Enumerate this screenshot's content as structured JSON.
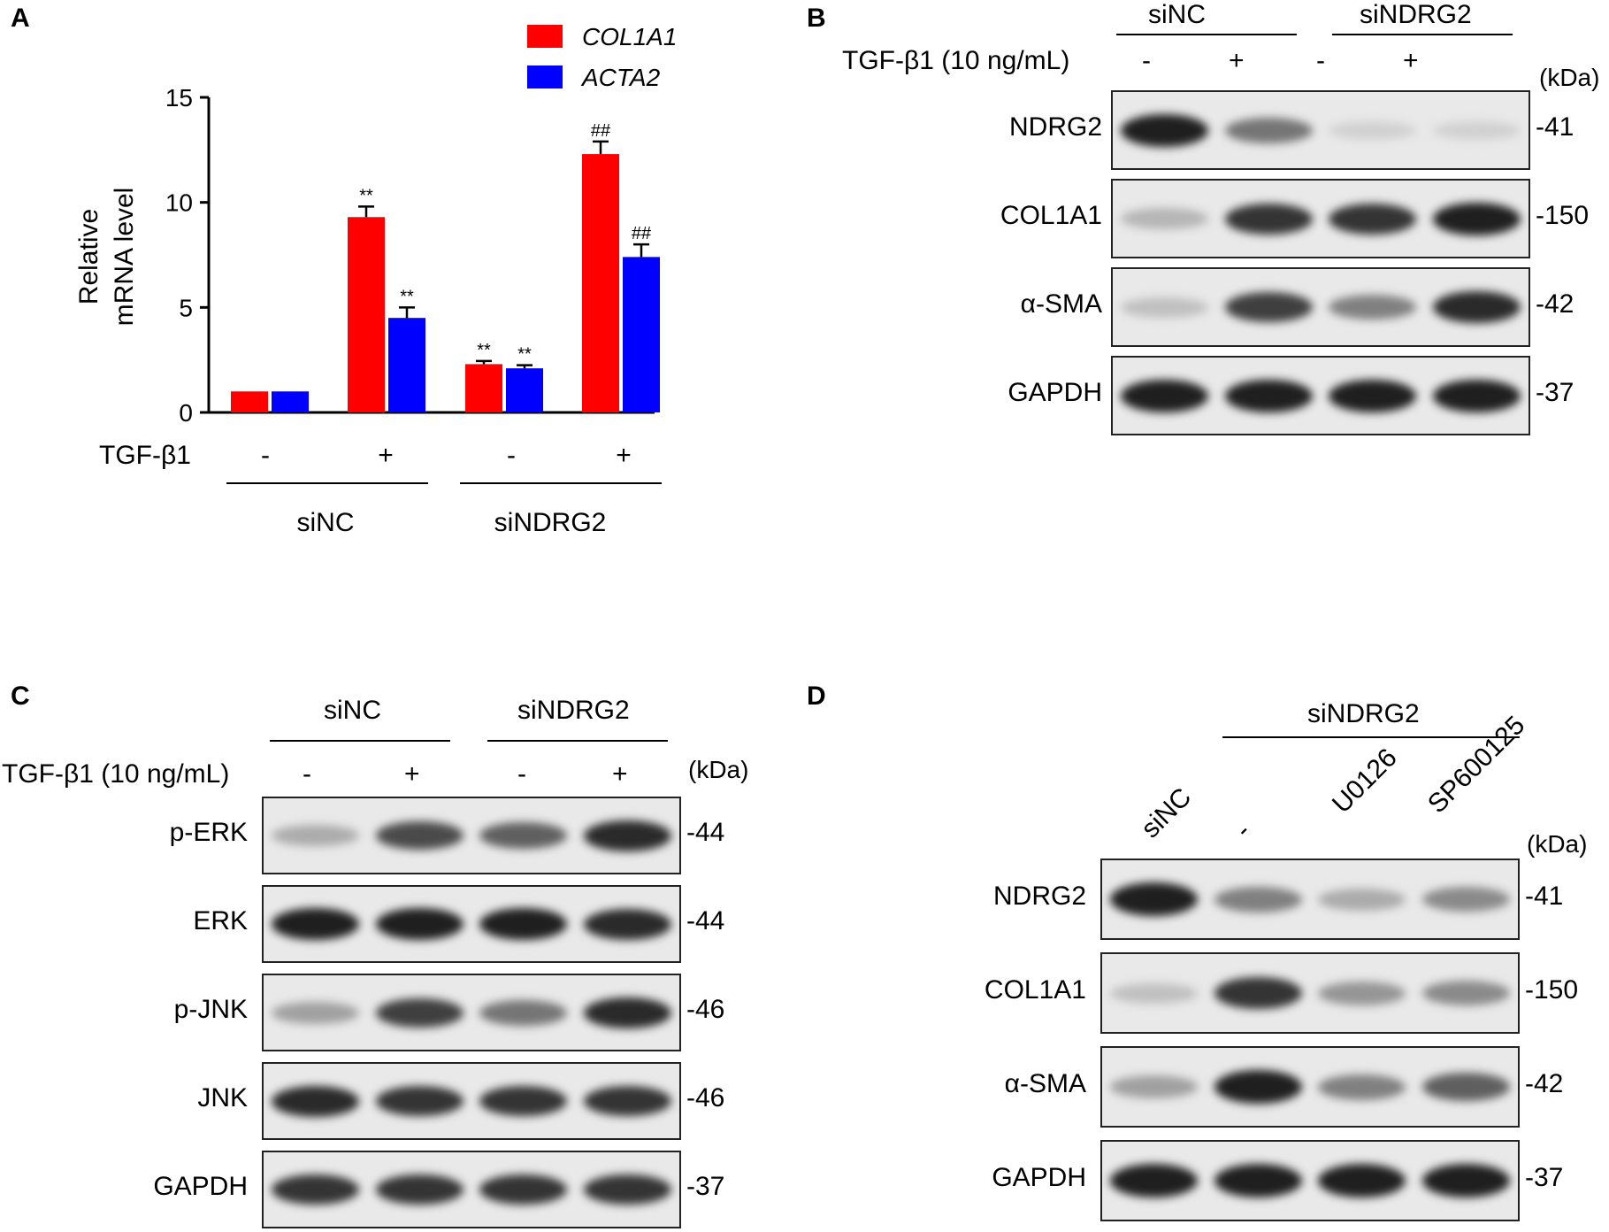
{
  "panels": {
    "a": "A",
    "b": "B",
    "c": "C",
    "d": "D"
  },
  "chart_data": {
    "type": "bar",
    "categories": [
      "siNC -",
      "siNC +",
      "siNDRG2 -",
      "siNDRG2 +"
    ],
    "series": [
      {
        "name": "COL1A1",
        "values": [
          1.0,
          9.3,
          2.3,
          12.3
        ],
        "errors": [
          0.0,
          0.5,
          0.15,
          0.6
        ],
        "marks": [
          "",
          "**",
          "**",
          "##"
        ]
      },
      {
        "name": "ACTA2",
        "values": [
          1.0,
          4.5,
          2.1,
          7.4
        ],
        "errors": [
          0.0,
          0.5,
          0.15,
          0.6
        ],
        "marks": [
          "",
          "**",
          "**",
          "##"
        ]
      }
    ],
    "colors": {
      "COL1A1": "#ff0000",
      "ACTA2": "#0000ff"
    },
    "ylabel_line1": "Relative",
    "ylabel_line2": "mRNA level",
    "ylim": [
      0,
      15
    ],
    "yticks": [
      "0",
      "5",
      "10",
      "15"
    ],
    "treatment_label": "TGF-β1",
    "treatment_marks": [
      "-",
      "+",
      "-",
      "+"
    ],
    "groups": [
      "siNC",
      "siNDRG2"
    ],
    "legend": [
      "COL1A1",
      "ACTA2"
    ],
    "legend_position": "top-right"
  },
  "blot_b": {
    "groups": [
      "siNC",
      "siNDRG2"
    ],
    "treatment_label": "TGF-β1 (10 ng/mL)",
    "marks": [
      "-",
      "+",
      "-",
      "+"
    ],
    "unit": "(kDa)",
    "rows": [
      {
        "name": "NDRG2",
        "kda": "-41",
        "intensity": [
          0.95,
          0.55,
          0.12,
          0.12
        ]
      },
      {
        "name": "COL1A1",
        "kda": "-150",
        "intensity": [
          0.25,
          0.85,
          0.85,
          0.95
        ]
      },
      {
        "name": "α-SMA",
        "kda": "-42",
        "intensity": [
          0.2,
          0.8,
          0.5,
          0.9
        ]
      },
      {
        "name": "GAPDH",
        "kda": "-37",
        "intensity": [
          0.95,
          0.95,
          0.95,
          0.95
        ]
      }
    ]
  },
  "blot_c": {
    "groups": [
      "siNC",
      "siNDRG2"
    ],
    "treatment_label": "TGF-β1 (10 ng/mL)",
    "marks": [
      "-",
      "+",
      "-",
      "+"
    ],
    "unit": "(kDa)",
    "rows": [
      {
        "name": "p-ERK",
        "kda": "-44",
        "intensity": [
          0.3,
          0.75,
          0.65,
          0.9
        ]
      },
      {
        "name": "ERK",
        "kda": "-44",
        "intensity": [
          0.95,
          0.95,
          0.95,
          0.9
        ]
      },
      {
        "name": "p-JNK",
        "kda": "-46",
        "intensity": [
          0.35,
          0.8,
          0.55,
          0.9
        ]
      },
      {
        "name": "JNK",
        "kda": "-46",
        "intensity": [
          0.9,
          0.85,
          0.85,
          0.85
        ]
      },
      {
        "name": "GAPDH",
        "kda": "-37",
        "intensity": [
          0.85,
          0.85,
          0.85,
          0.85
        ]
      }
    ]
  },
  "blot_d": {
    "group": "siNDRG2",
    "lanes": [
      "siNC",
      "-",
      "U0126",
      "SP600125"
    ],
    "unit": "(kDa)",
    "rows": [
      {
        "name": "NDRG2",
        "kda": "-41",
        "intensity": [
          0.95,
          0.5,
          0.3,
          0.45
        ]
      },
      {
        "name": "COL1A1",
        "kda": "-150",
        "intensity": [
          0.2,
          0.85,
          0.4,
          0.45
        ]
      },
      {
        "name": "α-SMA",
        "kda": "-42",
        "intensity": [
          0.35,
          0.95,
          0.5,
          0.65
        ]
      },
      {
        "name": "GAPDH",
        "kda": "-37",
        "intensity": [
          0.95,
          0.95,
          0.95,
          0.95
        ]
      }
    ]
  }
}
